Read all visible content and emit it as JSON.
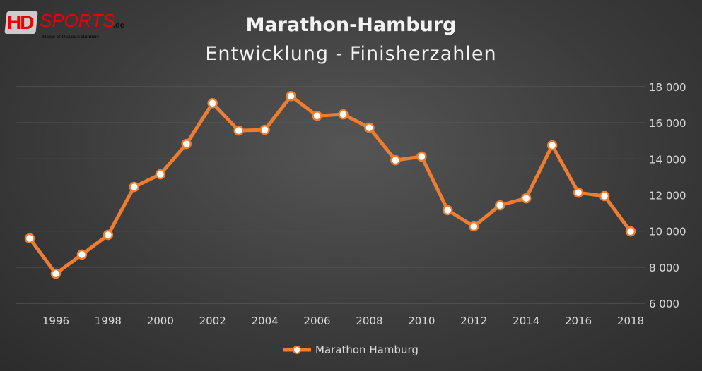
{
  "logo": {
    "text": "HDsports.de",
    "tagline": "Home of Distance Runners"
  },
  "chart_data": {
    "type": "line",
    "title": "Marathon-Hamburg",
    "subtitle": "Entwicklung - Finisherzahlen",
    "x": [
      1995,
      1996,
      1997,
      1998,
      1999,
      2000,
      2001,
      2002,
      2003,
      2004,
      2005,
      2006,
      2007,
      2008,
      2009,
      2010,
      2011,
      2012,
      2013,
      2014,
      2015,
      2016,
      2017,
      2018
    ],
    "series": [
      {
        "name": "Marathon Hamburg",
        "color": "#ed7d31",
        "values": [
          9600,
          7640,
          8700,
          9790,
          12450,
          13150,
          14830,
          17090,
          15570,
          15610,
          17480,
          16390,
          16470,
          15730,
          13930,
          14130,
          11160,
          10260,
          11430,
          11820,
          14750,
          12130,
          11940,
          9980
        ]
      }
    ],
    "xticks": [
      "1996",
      "1998",
      "2000",
      "2002",
      "2004",
      "2006",
      "2008",
      "2010",
      "2012",
      "2014",
      "2016",
      "2018"
    ],
    "yticks": [
      "6 000",
      "8 000",
      "10 000",
      "12 000",
      "14 000",
      "16 000",
      "18 000"
    ],
    "ylim": [
      6000,
      18000
    ],
    "xlabel": "",
    "ylabel": "",
    "grid": true,
    "yaxis_side": "right",
    "legend": "bottom"
  }
}
